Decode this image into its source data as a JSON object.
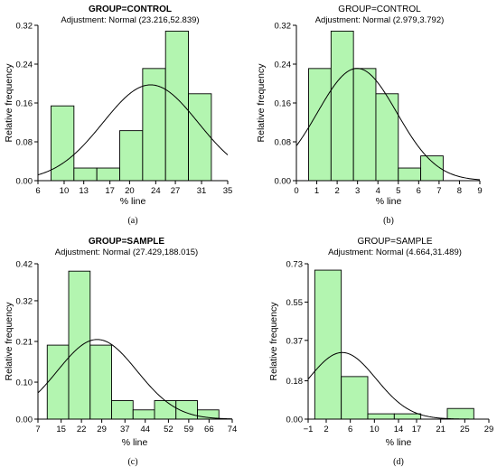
{
  "panels": [
    {
      "label": "(a)",
      "title": "GROUP=CONTROL",
      "subtitle": "Adjustment: Normal (23.216,52.839)",
      "xlabel": "% line",
      "ylabel": "Relative frequency",
      "chart_data": {
        "type": "bar",
        "bin_edges": [
          8,
          11.5,
          15,
          18.5,
          22,
          25.5,
          29,
          32.5
        ],
        "values": [
          0.154,
          0.026,
          0.026,
          0.103,
          0.231,
          0.308,
          0.179
        ],
        "xlim": [
          6,
          35
        ],
        "xticks": [
          6,
          10,
          13,
          17,
          20,
          24,
          27,
          31,
          35
        ],
        "ylim": [
          0,
          0.32
        ],
        "yticks": [
          "0.00",
          "0.08",
          "0.16",
          "0.24",
          "0.32"
        ],
        "normal_curve": {
          "mean": 23.216,
          "variance": 52.839
        },
        "bar_color": "#b3f5b0"
      }
    },
    {
      "label": "(b)",
      "title": "GROUP=CONTROL",
      "subtitle": "Adjustment: Normal (2.979,3.792)",
      "xlabel": "% line",
      "ylabel": "Relative frequency",
      "chart_data": {
        "type": "bar",
        "bin_edges": [
          0.6,
          1.7,
          2.8,
          3.9,
          5.0,
          6.1,
          7.2,
          8.3
        ],
        "values": [
          0.231,
          0.308,
          0.231,
          0.179,
          0.026,
          0.051,
          0
        ],
        "xlim": [
          0,
          9
        ],
        "xticks": [
          0,
          1,
          2,
          3,
          4,
          5,
          6,
          7,
          8,
          9
        ],
        "ylim": [
          0,
          0.32
        ],
        "yticks": [
          "0.00",
          "0.08",
          "0.16",
          "0.24",
          "0.32"
        ],
        "normal_curve": {
          "mean": 2.979,
          "variance": 3.792
        },
        "bar_color": "#b3f5b0"
      }
    },
    {
      "label": "(c)",
      "title": "GROUP=SAMPLE",
      "subtitle": "Adjustment: Normal (27.429,188.015)",
      "xlabel": "% line",
      "ylabel": "Relative frequency",
      "chart_data": {
        "type": "bar",
        "bin_edges": [
          10.2,
          17.6,
          25.0,
          32.4,
          39.8,
          47.2,
          54.6,
          62.0,
          69.4
        ],
        "values": [
          0.2,
          0.4,
          0.2,
          0.05,
          0.025,
          0.05,
          0.05,
          0.025
        ],
        "xlim": [
          7,
          74
        ],
        "xticks": [
          7,
          15,
          22,
          29,
          37,
          44,
          52,
          59,
          66,
          74
        ],
        "ylim": [
          0,
          0.42
        ],
        "yticks": [
          "0.00",
          "0.10",
          "0.21",
          "0.32",
          "0.42"
        ],
        "normal_curve": {
          "mean": 27.429,
          "variance": 188.015
        },
        "bar_color": "#b3f5b0"
      }
    },
    {
      "label": "(d)",
      "title": "GROUP=SAMPLE",
      "subtitle": "Adjustment: Normal (4.664,31.489)",
      "xlabel": "% line",
      "ylabel": "Relative frequency",
      "chart_data": {
        "type": "bar",
        "bin_edges": [
          0.1,
          4.5,
          8.9,
          13.3,
          17.7,
          22.1,
          26.5
        ],
        "values": [
          0.7,
          0.2,
          0.025,
          0.025,
          0,
          0.05
        ],
        "xlim": [
          -1,
          29
        ],
        "xticks": [
          -1,
          2,
          6,
          10,
          14,
          17,
          21,
          25,
          29
        ],
        "ylim": [
          0,
          0.73
        ],
        "yticks": [
          "0.00",
          "0.18",
          "0.37",
          "0.55",
          "0.73"
        ],
        "normal_curve": {
          "mean": 4.664,
          "variance": 31.489
        },
        "bar_color": "#b3f5b0"
      }
    }
  ]
}
